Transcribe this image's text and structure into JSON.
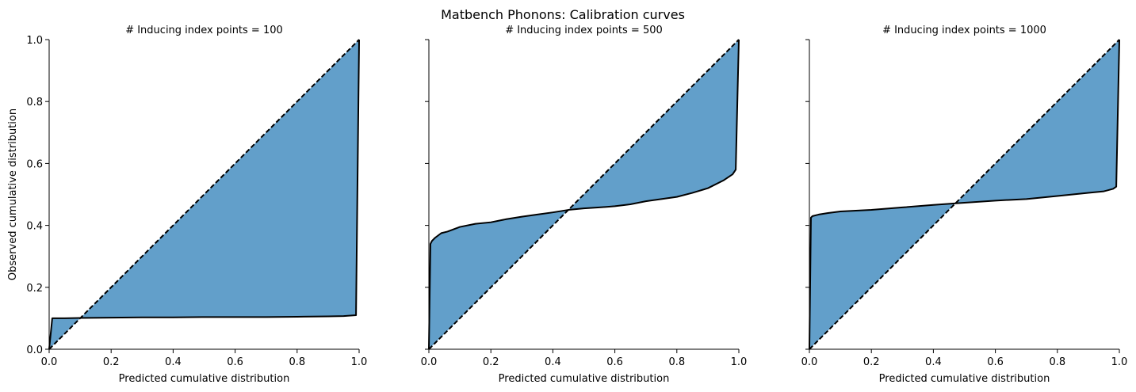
{
  "suptitle": "Matbench Phonons: Calibration curves",
  "chart_data": [
    {
      "type": "area",
      "title": "# Inducing index points = 100",
      "xlabel": "Predicted cumulative distribution",
      "ylabel": "Observed cumulative distribution",
      "xlim": [
        0,
        1
      ],
      "ylim": [
        0,
        1
      ],
      "xticks": [
        "0.0",
        "0.2",
        "0.4",
        "0.6",
        "0.8",
        "1.0"
      ],
      "yticks": [
        "0.0",
        "0.2",
        "0.4",
        "0.6",
        "0.8",
        "1.0"
      ],
      "ideal_line": {
        "x": [
          0,
          1
        ],
        "y": [
          0,
          1
        ],
        "style": "dashed"
      },
      "fill_color": "#629fca",
      "series": [
        {
          "x": [
            0,
            0.01,
            0.05,
            0.1,
            0.2,
            0.3,
            0.4,
            0.5,
            0.6,
            0.7,
            0.8,
            0.9,
            0.95,
            0.99,
            1.0
          ],
          "y": [
            0,
            0.1,
            0.1,
            0.101,
            0.102,
            0.103,
            0.103,
            0.104,
            0.104,
            0.104,
            0.105,
            0.106,
            0.107,
            0.11,
            1.0
          ]
        }
      ]
    },
    {
      "type": "area",
      "title": "# Inducing index points = 500",
      "xlabel": "Predicted cumulative distribution",
      "ylabel": "",
      "xlim": [
        0,
        1
      ],
      "ylim": [
        0,
        1
      ],
      "xticks": [
        "0.0",
        "0.2",
        "0.4",
        "0.6",
        "0.8",
        "1.0"
      ],
      "yticks": [],
      "ideal_line": {
        "x": [
          0,
          1
        ],
        "y": [
          0,
          1
        ],
        "style": "dashed"
      },
      "fill_color": "#629fca",
      "series": [
        {
          "x": [
            0,
            0.005,
            0.01,
            0.02,
            0.04,
            0.06,
            0.1,
            0.15,
            0.2,
            0.25,
            0.3,
            0.35,
            0.4,
            0.45,
            0.5,
            0.55,
            0.6,
            0.65,
            0.7,
            0.75,
            0.8,
            0.85,
            0.9,
            0.95,
            0.98,
            0.99,
            1.0
          ],
          "y": [
            0,
            0.34,
            0.35,
            0.36,
            0.375,
            0.38,
            0.395,
            0.405,
            0.41,
            0.42,
            0.428,
            0.435,
            0.442,
            0.45,
            0.455,
            0.458,
            0.462,
            0.468,
            0.478,
            0.485,
            0.492,
            0.505,
            0.52,
            0.545,
            0.565,
            0.58,
            1.0
          ]
        }
      ]
    },
    {
      "type": "area",
      "title": "# Inducing index points = 1000",
      "xlabel": "Predicted cumulative distribution",
      "ylabel": "",
      "xlim": [
        0,
        1
      ],
      "ylim": [
        0,
        1
      ],
      "xticks": [
        "0.0",
        "0.2",
        "0.4",
        "0.6",
        "0.8",
        "1.0"
      ],
      "yticks": [],
      "ideal_line": {
        "x": [
          0,
          1
        ],
        "y": [
          0,
          1
        ],
        "style": "dashed"
      },
      "fill_color": "#629fca",
      "series": [
        {
          "x": [
            0,
            0.005,
            0.01,
            0.03,
            0.06,
            0.1,
            0.2,
            0.3,
            0.4,
            0.5,
            0.6,
            0.7,
            0.8,
            0.9,
            0.95,
            0.98,
            0.99,
            1.0
          ],
          "y": [
            0,
            0.425,
            0.43,
            0.435,
            0.44,
            0.445,
            0.45,
            0.458,
            0.466,
            0.473,
            0.48,
            0.485,
            0.495,
            0.505,
            0.51,
            0.518,
            0.525,
            1.0
          ]
        }
      ]
    }
  ]
}
